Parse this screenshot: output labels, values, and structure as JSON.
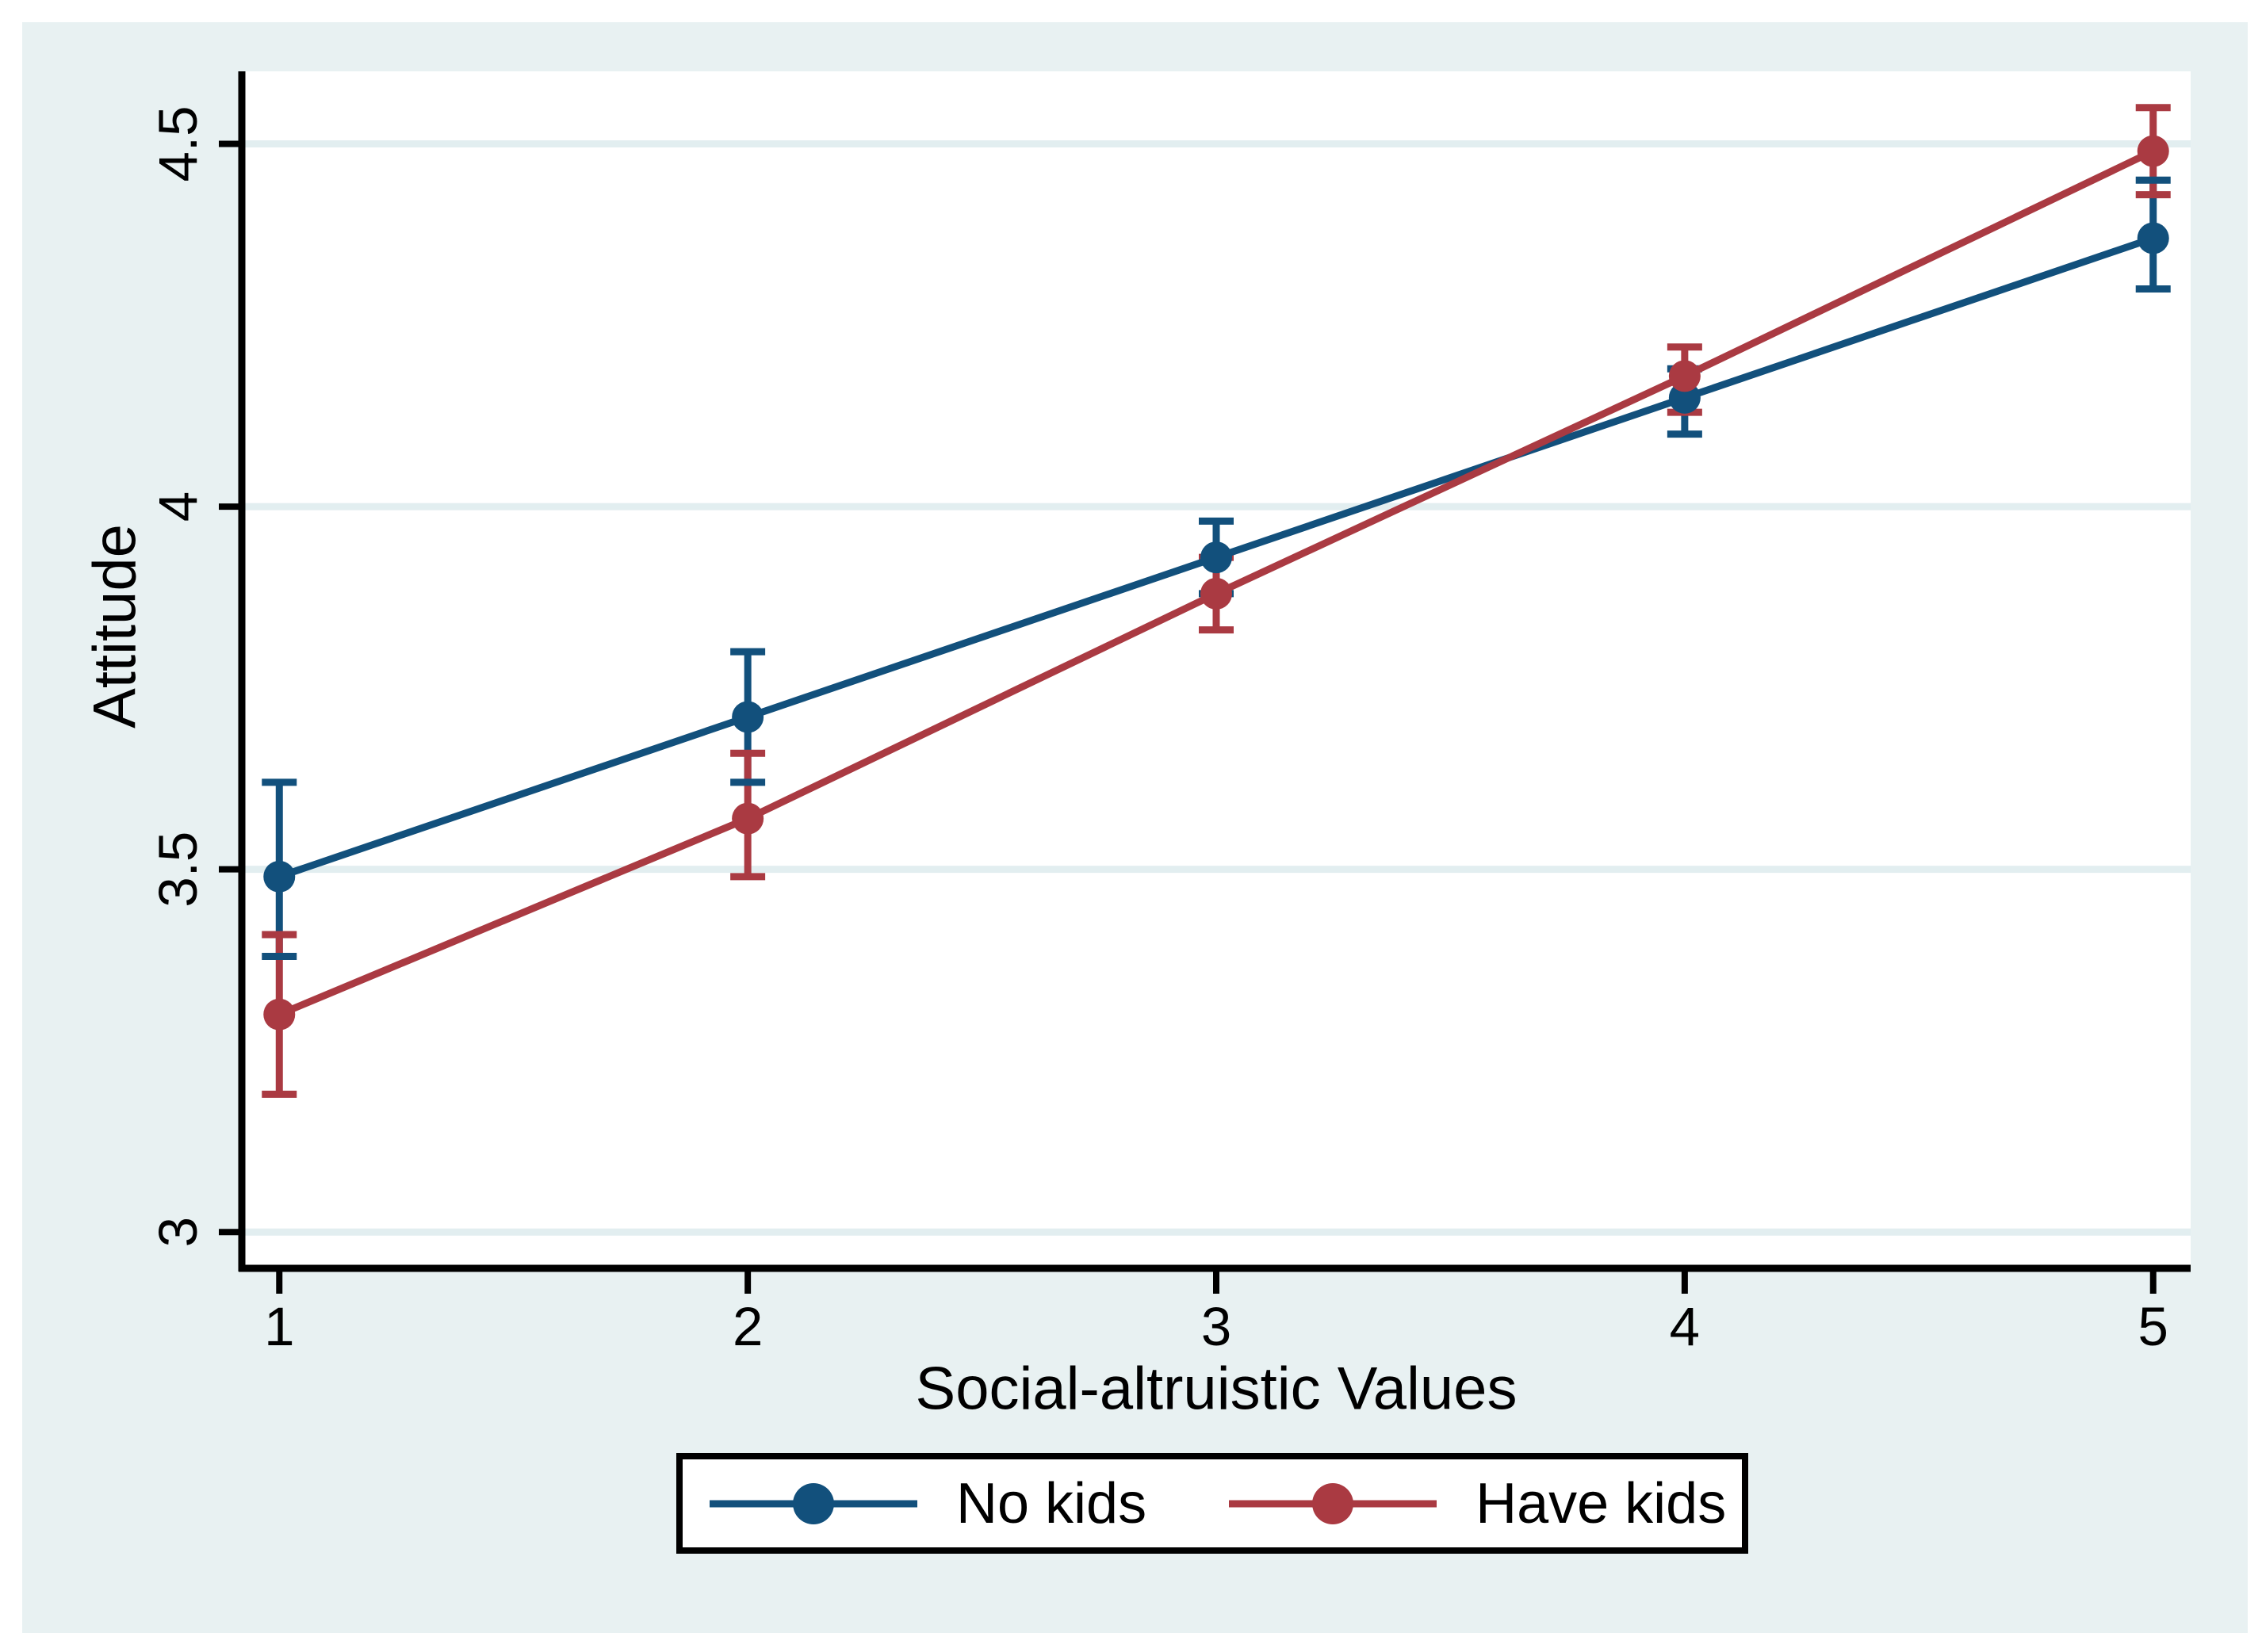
{
  "figure": {
    "page_background": "#FFFFFF",
    "canvas_background": "#E8F1F2",
    "plot_background": "#FFFFFF",
    "grid_color": "#E2EEF0",
    "axis_color": "#000000",
    "text_color": "#000000"
  },
  "chart_data": {
    "type": "line",
    "title": "",
    "xlabel": "Social-altruistic Values",
    "ylabel": "Attitude",
    "x": [
      1,
      2,
      3,
      4,
      5
    ],
    "xtick_labels": [
      "1",
      "2",
      "3",
      "4",
      "5"
    ],
    "yticks": [
      3,
      3.5,
      4,
      4.5
    ],
    "ytick_labels": [
      "3",
      "3.5",
      "4",
      "4.5"
    ],
    "xlim": [
      0.92,
      5.08
    ],
    "ylim": [
      2.95,
      4.6
    ],
    "grid": "horizontal",
    "error_bars": true,
    "legend_position": "bottom-outside",
    "series": [
      {
        "name": "No kids",
        "color": "#12507C",
        "values": [
          3.49,
          3.71,
          3.93,
          4.15,
          4.37
        ],
        "ci_low": [
          3.38,
          3.62,
          3.88,
          4.1,
          4.3
        ],
        "ci_high": [
          3.62,
          3.8,
          3.98,
          4.19,
          4.45
        ]
      },
      {
        "name": "Have kids",
        "color": "#AA3A42",
        "values": [
          3.3,
          3.57,
          3.88,
          4.18,
          4.49
        ],
        "ci_low": [
          3.19,
          3.49,
          3.83,
          4.13,
          4.43
        ],
        "ci_high": [
          3.41,
          3.66,
          3.93,
          4.22,
          4.55
        ]
      }
    ]
  }
}
